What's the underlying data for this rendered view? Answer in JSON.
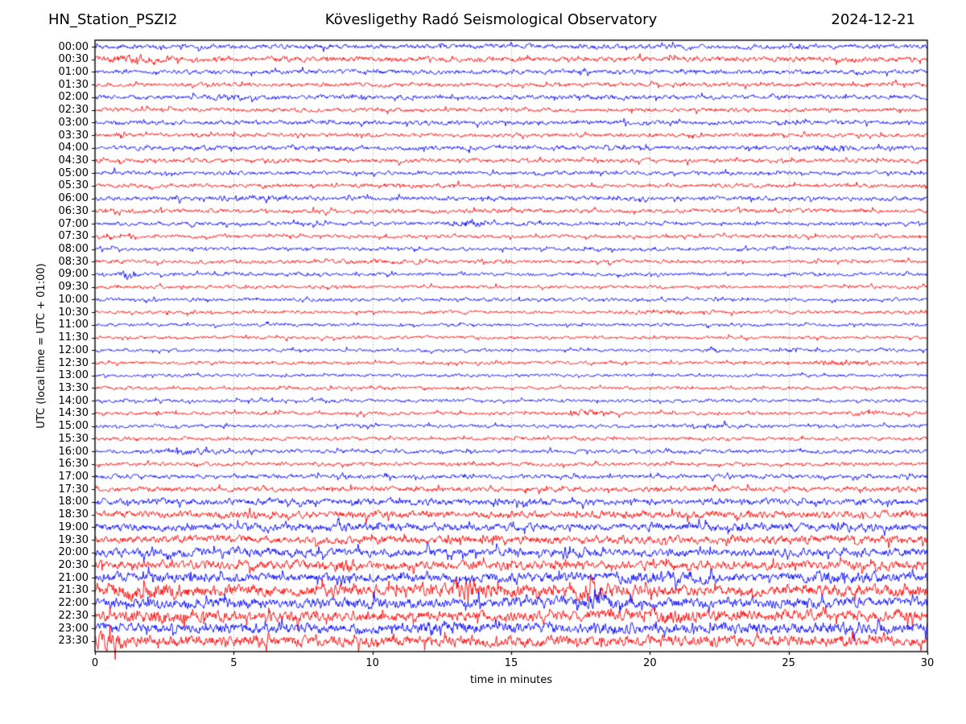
{
  "titles": {
    "left": "HN_Station_PSZI2",
    "center": "Kövesligethy Radó Seismological Observatory",
    "right": "2024-12-21"
  },
  "axes": {
    "xlabel": "time in minutes",
    "ylabel": "UTC (local time = UTC + 01:00)",
    "x_ticks": [
      0,
      5,
      10,
      15,
      20,
      25,
      30
    ],
    "x_gridlines": [
      5,
      10,
      15,
      20,
      25
    ],
    "xlim": [
      0,
      30
    ]
  },
  "colors": {
    "trace_even": "#0000ff",
    "trace_odd": "#ff0000",
    "frame": "#000000",
    "gridline": "#999999",
    "text": "#000000",
    "background": "#ffffff"
  },
  "chart_data": {
    "type": "line",
    "subtype": "helicorder-daily-seismogram",
    "station": "HN_Station_PSZI2",
    "observatory": "Kövesligethy Radó Seismological Observatory",
    "date": "2024-12-21",
    "x_minutes_range": [
      0,
      30
    ],
    "minutes_per_row": 30,
    "grid": "vertical-dotted-every-5-min",
    "legend_position": "none",
    "rows": [
      {
        "label": "00:00",
        "color": "#0000ff",
        "amp": 2.4,
        "events": []
      },
      {
        "label": "00:30",
        "color": "#ff0000",
        "amp": 2.6,
        "events": [
          {
            "t": 1.5,
            "w": 0.7,
            "m": 2.0
          }
        ]
      },
      {
        "label": "01:00",
        "color": "#0000ff",
        "amp": 2.3,
        "events": []
      },
      {
        "label": "01:30",
        "color": "#ff0000",
        "amp": 2.1,
        "events": []
      },
      {
        "label": "02:00",
        "color": "#0000ff",
        "amp": 2.2,
        "events": [
          {
            "t": 4.8,
            "w": 0.5,
            "m": 1.7
          },
          {
            "t": 18.5,
            "w": 0.8,
            "m": 1.4
          }
        ]
      },
      {
        "label": "02:30",
        "color": "#ff0000",
        "amp": 2.1,
        "events": []
      },
      {
        "label": "03:00",
        "color": "#0000ff",
        "amp": 2.3,
        "events": []
      },
      {
        "label": "03:30",
        "color": "#ff0000",
        "amp": 2.0,
        "events": []
      },
      {
        "label": "04:00",
        "color": "#0000ff",
        "amp": 2.3,
        "events": [
          {
            "t": 26.5,
            "w": 0.5,
            "m": 1.6
          }
        ]
      },
      {
        "label": "04:30",
        "color": "#ff0000",
        "amp": 2.2,
        "events": []
      },
      {
        "label": "05:00",
        "color": "#0000ff",
        "amp": 2.0,
        "events": []
      },
      {
        "label": "05:30",
        "color": "#ff0000",
        "amp": 2.0,
        "events": []
      },
      {
        "label": "06:00",
        "color": "#0000ff",
        "amp": 2.2,
        "events": [
          {
            "t": 5.5,
            "w": 0.7,
            "m": 1.5
          }
        ]
      },
      {
        "label": "06:30",
        "color": "#ff0000",
        "amp": 2.1,
        "events": []
      },
      {
        "label": "07:00",
        "color": "#0000ff",
        "amp": 2.0,
        "events": [
          {
            "t": 13.4,
            "w": 0.35,
            "m": 2.4
          }
        ]
      },
      {
        "label": "07:30",
        "color": "#ff0000",
        "amp": 1.8,
        "events": []
      },
      {
        "label": "08:00",
        "color": "#0000ff",
        "amp": 1.8,
        "events": []
      },
      {
        "label": "08:30",
        "color": "#ff0000",
        "amp": 1.9,
        "events": [
          {
            "t": 10.0,
            "w": 1.0,
            "m": 1.4
          }
        ]
      },
      {
        "label": "09:00",
        "color": "#0000ff",
        "amp": 1.8,
        "events": [
          {
            "t": 1.2,
            "w": 0.18,
            "m": 4.2
          }
        ]
      },
      {
        "label": "09:30",
        "color": "#ff0000",
        "amp": 1.7,
        "events": []
      },
      {
        "label": "10:00",
        "color": "#0000ff",
        "amp": 1.7,
        "events": []
      },
      {
        "label": "10:30",
        "color": "#ff0000",
        "amp": 1.7,
        "events": [
          {
            "t": 21.0,
            "w": 0.7,
            "m": 1.5
          }
        ]
      },
      {
        "label": "11:00",
        "color": "#0000ff",
        "amp": 1.6,
        "events": []
      },
      {
        "label": "11:30",
        "color": "#ff0000",
        "amp": 1.6,
        "events": []
      },
      {
        "label": "12:00",
        "color": "#0000ff",
        "amp": 1.6,
        "events": [
          {
            "t": 22.3,
            "w": 0.25,
            "m": 1.9
          }
        ]
      },
      {
        "label": "12:30",
        "color": "#ff0000",
        "amp": 1.7,
        "events": [
          {
            "t": 27.0,
            "w": 0.8,
            "m": 2.0
          }
        ]
      },
      {
        "label": "13:00",
        "color": "#0000ff",
        "amp": 1.6,
        "events": []
      },
      {
        "label": "13:30",
        "color": "#ff0000",
        "amp": 1.7,
        "events": []
      },
      {
        "label": "14:00",
        "color": "#0000ff",
        "amp": 1.7,
        "events": []
      },
      {
        "label": "14:30",
        "color": "#ff0000",
        "amp": 1.8,
        "events": [
          {
            "t": 17.6,
            "w": 0.5,
            "m": 2.0
          },
          {
            "t": 28.0,
            "w": 0.5,
            "m": 1.6
          }
        ]
      },
      {
        "label": "15:00",
        "color": "#0000ff",
        "amp": 1.8,
        "events": [
          {
            "t": 22.5,
            "w": 0.6,
            "m": 1.6
          }
        ]
      },
      {
        "label": "15:30",
        "color": "#ff0000",
        "amp": 1.8,
        "events": []
      },
      {
        "label": "16:00",
        "color": "#0000ff",
        "amp": 2.0,
        "events": [
          {
            "t": 3.3,
            "w": 0.7,
            "m": 1.8
          }
        ]
      },
      {
        "label": "16:30",
        "color": "#ff0000",
        "amp": 1.9,
        "events": []
      },
      {
        "label": "17:00",
        "color": "#0000ff",
        "amp": 2.2,
        "events": []
      },
      {
        "label": "17:30",
        "color": "#ff0000",
        "amp": 2.6,
        "events": []
      },
      {
        "label": "18:00",
        "color": "#0000ff",
        "amp": 3.2,
        "events": []
      },
      {
        "label": "18:30",
        "color": "#ff0000",
        "amp": 3.6,
        "events": []
      },
      {
        "label": "19:00",
        "color": "#0000ff",
        "amp": 4.0,
        "events": []
      },
      {
        "label": "19:30",
        "color": "#ff0000",
        "amp": 4.0,
        "events": []
      },
      {
        "label": "20:00",
        "color": "#0000ff",
        "amp": 4.2,
        "events": []
      },
      {
        "label": "20:30",
        "color": "#ff0000",
        "amp": 4.4,
        "events": [
          {
            "t": 9.0,
            "w": 0.8,
            "m": 1.4
          }
        ]
      },
      {
        "label": "21:00",
        "color": "#0000ff",
        "amp": 4.6,
        "events": [
          {
            "t": 20.0,
            "w": 1.0,
            "m": 1.4
          },
          {
            "t": 27.0,
            "w": 0.8,
            "m": 1.4
          }
        ]
      },
      {
        "label": "21:30",
        "color": "#ff0000",
        "amp": 5.8,
        "events": [
          {
            "t": 2.0,
            "w": 1.0,
            "m": 1.5
          },
          {
            "t": 13.5,
            "w": 0.8,
            "m": 1.6
          },
          {
            "t": 17.8,
            "w": 0.6,
            "m": 1.6
          }
        ]
      },
      {
        "label": "22:00",
        "color": "#0000ff",
        "amp": 5.0,
        "events": [
          {
            "t": 18.0,
            "w": 0.8,
            "m": 1.4
          }
        ]
      },
      {
        "label": "22:30",
        "color": "#ff0000",
        "amp": 5.4,
        "events": [
          {
            "t": 2.5,
            "w": 0.8,
            "m": 1.5
          },
          {
            "t": 21.0,
            "w": 0.8,
            "m": 1.4
          }
        ]
      },
      {
        "label": "23:00",
        "color": "#0000ff",
        "amp": 5.0,
        "events": [
          {
            "t": 12.5,
            "w": 0.8,
            "m": 1.4
          },
          {
            "t": 27.0,
            "w": 0.8,
            "m": 1.3
          }
        ]
      },
      {
        "label": "23:30",
        "color": "#ff0000",
        "amp": 5.6,
        "events": [
          {
            "t": 0.5,
            "w": 0.4,
            "m": 1.7
          }
        ]
      }
    ]
  }
}
